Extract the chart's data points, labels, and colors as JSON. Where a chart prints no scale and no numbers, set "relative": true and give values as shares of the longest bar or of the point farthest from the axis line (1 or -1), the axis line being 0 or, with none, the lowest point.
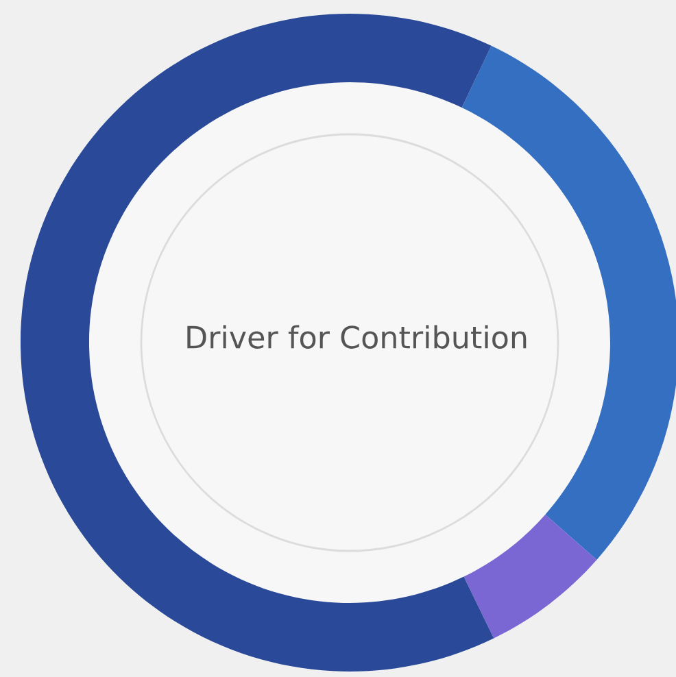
{
  "chart_data": {
    "type": "donut",
    "title": "Driver for Contribution",
    "categories": [
      null,
      null,
      null
    ],
    "values": [
      29.4,
      6.3,
      64.3
    ],
    "colors": [
      "#346fc1",
      "#7a67d3",
      "#2a4a99"
    ],
    "relative": true,
    "legend": false
  }
}
